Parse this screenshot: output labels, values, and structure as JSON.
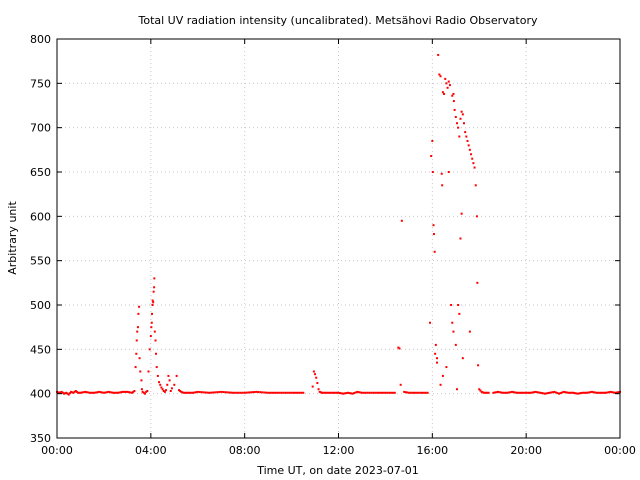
{
  "chart_data": {
    "type": "scatter",
    "title": "Total UV radiation intensity (uncalibrated). Metsähovi Radio Observatory",
    "xlabel": "Time UT, on date 2023-07-01",
    "ylabel": "Arbitrary unit",
    "xlim": [
      0,
      24
    ],
    "ylim": [
      350,
      800
    ],
    "x_ticks": [
      {
        "value": 0,
        "label": "00:00"
      },
      {
        "value": 4,
        "label": "04:00"
      },
      {
        "value": 8,
        "label": "08:00"
      },
      {
        "value": 12,
        "label": "12:00"
      },
      {
        "value": 16,
        "label": "16:00"
      },
      {
        "value": 20,
        "label": "20:00"
      },
      {
        "value": 24,
        "label": "00:00"
      }
    ],
    "y_ticks": [
      350,
      400,
      450,
      500,
      550,
      600,
      650,
      700,
      750,
      800
    ],
    "grid": true,
    "marker_color": "#ff0000",
    "series": [
      {
        "name": "",
        "points": [
          [
            0.0,
            402
          ],
          [
            0.1,
            401
          ],
          [
            0.2,
            402
          ],
          [
            0.3,
            400
          ],
          [
            0.4,
            401
          ],
          [
            0.5,
            399
          ],
          [
            0.6,
            402
          ],
          [
            0.7,
            401
          ],
          [
            0.8,
            403
          ],
          [
            0.9,
            401
          ],
          [
            1.0,
            401
          ],
          [
            1.2,
            402
          ],
          [
            1.4,
            401
          ],
          [
            1.6,
            401
          ],
          [
            1.8,
            402
          ],
          [
            2.0,
            401
          ],
          [
            2.2,
            402
          ],
          [
            2.4,
            401
          ],
          [
            2.6,
            401
          ],
          [
            2.8,
            402
          ],
          [
            3.0,
            402
          ],
          [
            3.2,
            401
          ],
          [
            3.3,
            403
          ],
          [
            3.35,
            430
          ],
          [
            3.38,
            445
          ],
          [
            3.4,
            460
          ],
          [
            3.42,
            470
          ],
          [
            3.45,
            475
          ],
          [
            3.47,
            490
          ],
          [
            3.5,
            498
          ],
          [
            3.52,
            440
          ],
          [
            3.55,
            425
          ],
          [
            3.6,
            415
          ],
          [
            3.62,
            405
          ],
          [
            3.65,
            402
          ],
          [
            3.7,
            401
          ],
          [
            3.75,
            400
          ],
          [
            3.8,
            402
          ],
          [
            3.85,
            403
          ],
          [
            3.9,
            425
          ],
          [
            3.95,
            450
          ],
          [
            4.0,
            465
          ],
          [
            4.02,
            475
          ],
          [
            4.04,
            480
          ],
          [
            4.05,
            490
          ],
          [
            4.07,
            500
          ],
          [
            4.08,
            505
          ],
          [
            4.1,
            503
          ],
          [
            4.12,
            515
          ],
          [
            4.14,
            520
          ],
          [
            4.15,
            530
          ],
          [
            4.17,
            470
          ],
          [
            4.2,
            460
          ],
          [
            4.22,
            445
          ],
          [
            4.25,
            430
          ],
          [
            4.3,
            420
          ],
          [
            4.35,
            413
          ],
          [
            4.4,
            410
          ],
          [
            4.45,
            407
          ],
          [
            4.5,
            405
          ],
          [
            4.55,
            403
          ],
          [
            4.6,
            402
          ],
          [
            4.65,
            404
          ],
          [
            4.7,
            410
          ],
          [
            4.75,
            420
          ],
          [
            4.8,
            415
          ],
          [
            4.85,
            403
          ],
          [
            4.9,
            406
          ],
          [
            5.0,
            410
          ],
          [
            5.1,
            420
          ],
          [
            5.2,
            404
          ],
          [
            5.3,
            402
          ],
          [
            5.4,
            401
          ],
          [
            5.6,
            401
          ],
          [
            5.8,
            401
          ],
          [
            6.0,
            402
          ],
          [
            6.5,
            401
          ],
          [
            7.0,
            402
          ],
          [
            7.5,
            401
          ],
          [
            8.0,
            401
          ],
          [
            8.5,
            402
          ],
          [
            9.0,
            401
          ],
          [
            9.5,
            401
          ],
          [
            10.0,
            401
          ],
          [
            10.5,
            401
          ],
          [
            10.9,
            408
          ],
          [
            10.95,
            425
          ],
          [
            11.0,
            422
          ],
          [
            11.05,
            418
          ],
          [
            11.1,
            412
          ],
          [
            11.15,
            405
          ],
          [
            11.2,
            402
          ],
          [
            11.3,
            401
          ],
          [
            11.5,
            401
          ],
          [
            11.8,
            401
          ],
          [
            12.0,
            401
          ],
          [
            12.2,
            400
          ],
          [
            12.4,
            401
          ],
          [
            12.6,
            400
          ],
          [
            12.8,
            402
          ],
          [
            13.0,
            401
          ],
          [
            13.5,
            401
          ],
          [
            14.0,
            401
          ],
          [
            14.4,
            401
          ],
          [
            14.55,
            452
          ],
          [
            14.6,
            451
          ],
          [
            14.65,
            410
          ],
          [
            14.7,
            595
          ],
          [
            14.8,
            402
          ],
          [
            15.0,
            401
          ],
          [
            15.4,
            401
          ],
          [
            15.8,
            401
          ],
          [
            15.9,
            480
          ],
          [
            15.95,
            668
          ],
          [
            16.0,
            685
          ],
          [
            16.02,
            650
          ],
          [
            16.05,
            590
          ],
          [
            16.07,
            580
          ],
          [
            16.1,
            560
          ],
          [
            16.12,
            445
          ],
          [
            16.15,
            455
          ],
          [
            16.2,
            435
          ],
          [
            16.25,
            782
          ],
          [
            16.3,
            760
          ],
          [
            16.35,
            758
          ],
          [
            16.4,
            648
          ],
          [
            16.42,
            635
          ],
          [
            16.45,
            740
          ],
          [
            16.5,
            738
          ],
          [
            16.55,
            755
          ],
          [
            16.6,
            750
          ],
          [
            16.65,
            745
          ],
          [
            16.7,
            752
          ],
          [
            16.75,
            748
          ],
          [
            16.8,
            500
          ],
          [
            16.85,
            736
          ],
          [
            16.9,
            738
          ],
          [
            16.92,
            730
          ],
          [
            16.95,
            720
          ],
          [
            17.0,
            712
          ],
          [
            17.05,
            705
          ],
          [
            17.1,
            700
          ],
          [
            17.15,
            690
          ],
          [
            17.2,
            710
          ],
          [
            17.25,
            718
          ],
          [
            17.3,
            715
          ],
          [
            17.35,
            705
          ],
          [
            17.4,
            695
          ],
          [
            17.45,
            690
          ],
          [
            17.5,
            685
          ],
          [
            17.55,
            680
          ],
          [
            17.6,
            675
          ],
          [
            17.65,
            670
          ],
          [
            17.7,
            665
          ],
          [
            17.75,
            660
          ],
          [
            17.8,
            655
          ],
          [
            17.85,
            635
          ],
          [
            17.9,
            600
          ],
          [
            17.92,
            525
          ],
          [
            17.95,
            432
          ],
          [
            18.0,
            405
          ],
          [
            18.1,
            402
          ],
          [
            18.2,
            401
          ],
          [
            18.4,
            401
          ],
          [
            16.7,
            650
          ],
          [
            16.85,
            480
          ],
          [
            16.9,
            470
          ],
          [
            17.0,
            455
          ],
          [
            17.1,
            500
          ],
          [
            17.15,
            490
          ],
          [
            17.2,
            575
          ],
          [
            17.25,
            603
          ],
          [
            16.35,
            410
          ],
          [
            16.45,
            420
          ],
          [
            16.6,
            430
          ],
          [
            17.05,
            405
          ],
          [
            17.6,
            470
          ],
          [
            17.3,
            440
          ],
          [
            16.2,
            440
          ],
          [
            18.6,
            401
          ],
          [
            18.8,
            402
          ],
          [
            19.0,
            401
          ],
          [
            19.2,
            401
          ],
          [
            19.4,
            402
          ],
          [
            19.6,
            401
          ],
          [
            19.8,
            401
          ],
          [
            20.0,
            401
          ],
          [
            20.2,
            401
          ],
          [
            20.4,
            402
          ],
          [
            20.6,
            401
          ],
          [
            20.8,
            400
          ],
          [
            21.0,
            401
          ],
          [
            21.2,
            402
          ],
          [
            21.4,
            400
          ],
          [
            21.6,
            402
          ],
          [
            21.8,
            401
          ],
          [
            22.0,
            401
          ],
          [
            22.2,
            400
          ],
          [
            22.4,
            401
          ],
          [
            22.6,
            401
          ],
          [
            22.8,
            402
          ],
          [
            23.0,
            401
          ],
          [
            23.2,
            401
          ],
          [
            23.4,
            401
          ],
          [
            23.6,
            402
          ],
          [
            23.8,
            401
          ],
          [
            24.0,
            402
          ]
        ]
      }
    ]
  }
}
